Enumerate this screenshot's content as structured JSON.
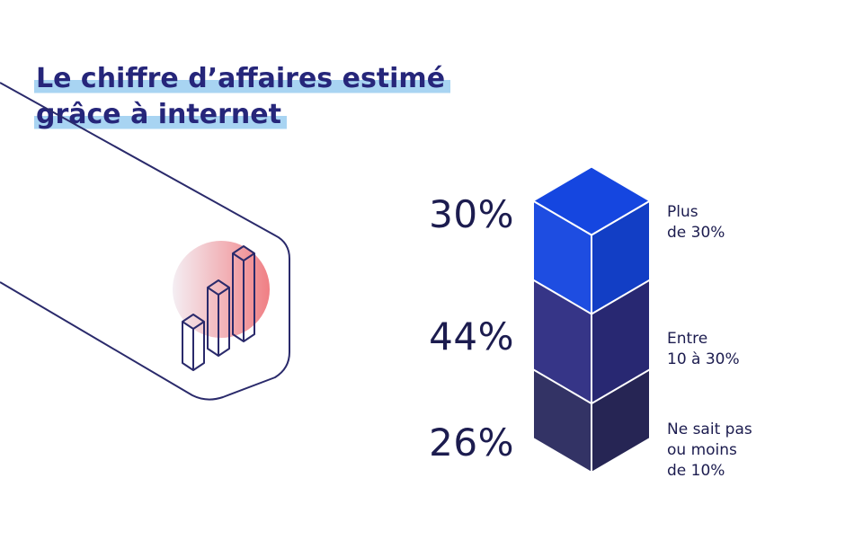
{
  "title": {
    "line1": "Le chiffre d’affaires estimé",
    "line2": "grâce à internet"
  },
  "colors": {
    "title_text": "#26267a",
    "title_highlight": "#a8d4f2",
    "outline": "#2a2a6b",
    "circle_pink": "#f19a9c"
  },
  "icons": [
    "bar-chart-icon"
  ],
  "chart_data": {
    "type": "bar",
    "categories": [
      "Plus de 30%",
      "Entre 10 à 30%",
      "Ne sait pas ou moins de 10%"
    ],
    "values": [
      30,
      44,
      26
    ],
    "value_labels": [
      "30%",
      "44%",
      "26%"
    ],
    "label_lines": [
      [
        "Plus",
        "de 30%"
      ],
      [
        "Entre",
        "10 à 30%"
      ],
      [
        "Ne sait pas",
        "ou moins",
        "de 10%"
      ]
    ],
    "colors": [
      "#1546e0",
      "#2e2d82",
      "#2b2a5f"
    ],
    "title": "Le chiffre d’affaires estimé grâce à internet",
    "xlabel": "",
    "ylabel": ""
  }
}
